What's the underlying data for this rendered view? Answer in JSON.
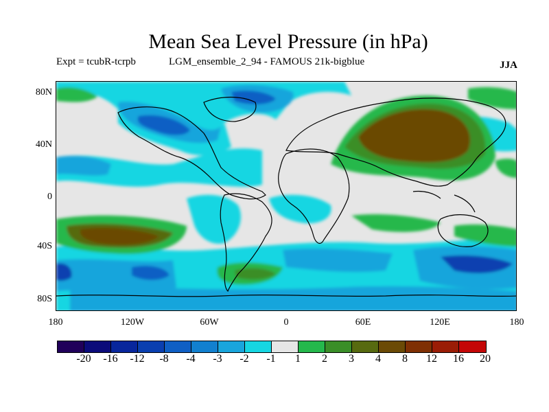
{
  "title": "Mean Sea Level Pressure (in hPa)",
  "subtitle_left": "Expt = tcubR-tcrpb",
  "subtitle_mid": "LGM_ensemble_2_94 - FAMOUS 21k-bigblue",
  "season": "JJA",
  "lat_labels": [
    "80N",
    "40N",
    "0",
    "40S",
    "80S"
  ],
  "lon_labels": [
    "180",
    "120W",
    "60W",
    "0",
    "60E",
    "120E",
    "180"
  ],
  "colorbar": {
    "colors": [
      "#20005a",
      "#0b0b7a",
      "#08269c",
      "#0a3fb0",
      "#0f5fc4",
      "#1280cf",
      "#19a5dc",
      "#16d6e2",
      "#e6e6e6",
      "#25b84c",
      "#3a8e28",
      "#576a10",
      "#6b4a06",
      "#7f3004",
      "#9a1d06",
      "#c40707"
    ],
    "labels": [
      "-20",
      "-16",
      "-12",
      "-8",
      "-4",
      "-3",
      "-2",
      "-1",
      "1",
      "2",
      "3",
      "4",
      "8",
      "12",
      "16",
      "20"
    ]
  }
}
